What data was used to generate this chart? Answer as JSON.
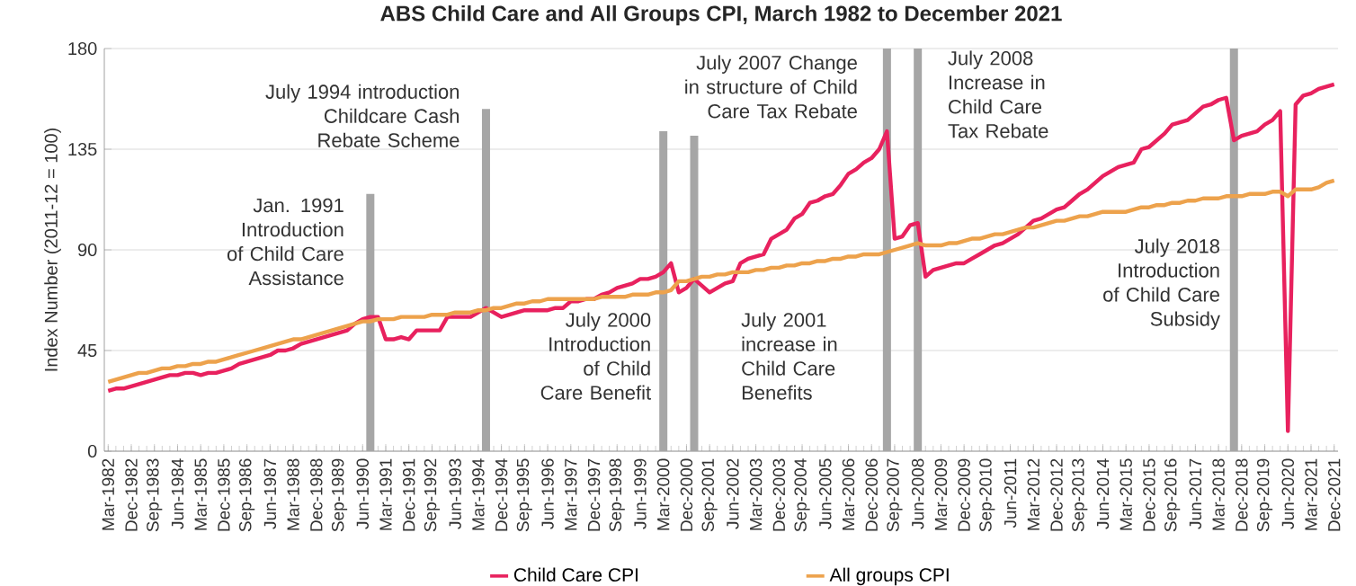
{
  "chart_data": {
    "type": "line",
    "title": "ABS Child Care and All Groups CPI, March 1982 to December 2021",
    "ylabel": "Index Number (2011-12 = 100)",
    "categories": [
      "Mar-1982",
      null,
      null,
      "Dec-1982",
      null,
      null,
      "Sep-1983",
      null,
      null,
      "Jun-1984",
      null,
      null,
      "Mar-1985",
      null,
      null,
      "Dec-1985",
      null,
      null,
      "Sep-1986",
      null,
      null,
      "Jun-1987",
      null,
      null,
      "Mar-1988",
      null,
      null,
      "Dec-1988",
      null,
      null,
      "Sep-1989",
      null,
      null,
      "Jun-1990",
      null,
      null,
      "Mar-1991",
      null,
      null,
      "Dec-1991",
      null,
      null,
      "Sep-1992",
      null,
      null,
      "Jun-1993",
      null,
      null,
      "Mar-1994",
      null,
      null,
      "Dec-1994",
      null,
      null,
      "Sep-1995",
      null,
      null,
      "Jun-1996",
      null,
      null,
      "Mar-1997",
      null,
      null,
      "Dec-1997",
      null,
      null,
      "Sep-1998",
      null,
      null,
      "Jun-1999",
      null,
      null,
      "Mar-2000",
      null,
      null,
      "Dec-2000",
      null,
      null,
      "Sep-2001",
      null,
      null,
      "Jun-2002",
      null,
      null,
      "Mar-2003",
      null,
      null,
      "Dec-2003",
      null,
      null,
      "Sep-2004",
      null,
      null,
      "Jun-2005",
      null,
      null,
      "Mar-2006",
      null,
      null,
      "Dec-2006",
      null,
      null,
      "Sep-2007",
      null,
      null,
      "Jun-2008",
      null,
      null,
      "Mar-2009",
      null,
      null,
      "Dec-2009",
      null,
      null,
      "Sep-2010",
      null,
      null,
      "Jun-2011",
      null,
      null,
      "Mar-2012",
      null,
      null,
      "Dec-2012",
      null,
      null,
      "Sep-2013",
      null,
      null,
      "Jun-2014",
      null,
      null,
      "Mar-2015",
      null,
      null,
      "Dec-2015",
      null,
      null,
      "Sep-2016",
      null,
      null,
      "Jun-2017",
      null,
      null,
      "Mar-2018",
      null,
      null,
      "Dec-2018",
      null,
      null,
      "Sep-2019",
      null,
      null,
      "Jun-2020",
      null,
      null,
      "Mar-2021",
      null,
      null,
      "Dec-2021"
    ],
    "series": [
      {
        "type": "bar",
        "color": "#a6a6a6",
        "values": [
          null,
          null,
          null,
          null,
          null,
          null,
          null,
          null,
          null,
          null,
          null,
          null,
          null,
          null,
          null,
          null,
          null,
          null,
          null,
          null,
          null,
          null,
          null,
          null,
          null,
          null,
          null,
          null,
          null,
          null,
          null,
          null,
          null,
          null,
          115,
          null,
          null,
          null,
          null,
          null,
          null,
          null,
          null,
          null,
          null,
          null,
          null,
          null,
          null,
          153,
          null,
          null,
          null,
          null,
          null,
          null,
          null,
          null,
          null,
          null,
          null,
          null,
          null,
          null,
          null,
          null,
          null,
          null,
          null,
          null,
          null,
          null,
          143,
          null,
          null,
          null,
          141,
          null,
          null,
          null,
          null,
          null,
          null,
          null,
          null,
          null,
          null,
          null,
          null,
          null,
          null,
          null,
          null,
          null,
          null,
          null,
          null,
          null,
          null,
          null,
          null,
          180,
          null,
          null,
          null,
          180,
          null,
          null,
          null,
          null,
          null,
          null,
          null,
          null,
          null,
          null,
          null,
          null,
          null,
          null,
          null,
          null,
          null,
          null,
          null,
          null,
          null,
          null,
          null,
          null,
          null,
          null,
          null,
          null,
          null,
          null,
          null,
          null,
          null,
          null,
          null,
          null,
          null,
          null,
          null,
          null,
          180,
          null,
          null,
          null,
          null,
          null,
          null,
          null,
          null,
          null,
          null,
          null,
          null,
          null
        ]
      },
      {
        "name": "Child Care CPI",
        "color": "#e8215e",
        "values": [
          27,
          28,
          28,
          29,
          30,
          31,
          32,
          33,
          34,
          34,
          35,
          35,
          34,
          35,
          35,
          36,
          37,
          39,
          40,
          41,
          42,
          43,
          45,
          45,
          46,
          48,
          49,
          50,
          51,
          52,
          53,
          54,
          57,
          59,
          60,
          60,
          50,
          50,
          51,
          50,
          54,
          54,
          54,
          54,
          60,
          60,
          60,
          60,
          62,
          64,
          62,
          60,
          61,
          62,
          63,
          63,
          63,
          63,
          64,
          64,
          67,
          67,
          68,
          68,
          70,
          71,
          73,
          74,
          75,
          77,
          77,
          78,
          80,
          84,
          71,
          73,
          77,
          74,
          71,
          73,
          75,
          76,
          84,
          86,
          87,
          88,
          95,
          97,
          99,
          104,
          106,
          111,
          112,
          114,
          115,
          119,
          124,
          126,
          129,
          131,
          135,
          143,
          95,
          96,
          101,
          102,
          78,
          81,
          82,
          83,
          84,
          84,
          86,
          88,
          90,
          92,
          93,
          95,
          97,
          100,
          103,
          104,
          106,
          108,
          109,
          112,
          115,
          117,
          120,
          123,
          125,
          127,
          128,
          129,
          135,
          136,
          139,
          142,
          146,
          147,
          148,
          151,
          154,
          155,
          157,
          158,
          139,
          141,
          142,
          143,
          146,
          148,
          152,
          9,
          155,
          159,
          160,
          162,
          163,
          164
        ]
      },
      {
        "name": "All groups CPI",
        "color": "#eda24c",
        "values": [
          31,
          32,
          33,
          34,
          35,
          35,
          36,
          37,
          37,
          38,
          38,
          39,
          39,
          40,
          40,
          41,
          42,
          43,
          44,
          45,
          46,
          47,
          48,
          49,
          50,
          50,
          51,
          52,
          53,
          54,
          55,
          56,
          57,
          58,
          58,
          59,
          59,
          59,
          60,
          60,
          60,
          60,
          61,
          61,
          61,
          62,
          62,
          62,
          63,
          63,
          64,
          64,
          65,
          66,
          66,
          67,
          67,
          68,
          68,
          68,
          68,
          68,
          68,
          68,
          69,
          69,
          69,
          69,
          70,
          70,
          70,
          71,
          71,
          72,
          76,
          76,
          77,
          78,
          78,
          79,
          79,
          80,
          80,
          80,
          81,
          81,
          82,
          82,
          83,
          83,
          84,
          84,
          85,
          85,
          86,
          86,
          87,
          87,
          88,
          88,
          88,
          89,
          90,
          91,
          92,
          93,
          92,
          92,
          92,
          93,
          93,
          94,
          95,
          95,
          96,
          97,
          97,
          98,
          99,
          100,
          100,
          101,
          102,
          103,
          103,
          104,
          105,
          105,
          106,
          107,
          107,
          107,
          107,
          108,
          109,
          109,
          110,
          110,
          111,
          111,
          112,
          112,
          113,
          113,
          113,
          114,
          114,
          114,
          115,
          115,
          115,
          116,
          116,
          114,
          117,
          117,
          117,
          118,
          120,
          121
        ]
      }
    ],
    "ylim": [
      0,
      180
    ],
    "yticks": [
      0,
      45,
      90,
      135,
      180
    ],
    "grid": "y",
    "legend": "bottom",
    "annotations": [
      "Jan. 1991 Introduction of Child Care Assistance",
      "July 1994 introduction Childcare Cash Rebate Scheme",
      "July 2000 Introduction of Child Care Benefit",
      "July 2001 increase in Child Care Benefits",
      "July 2007 Change in structure of Child Care Tax Rebate",
      "July 2008 Increase in Child Care Tax Rebate",
      "July 2018 Introduction of Child Care Subsidy"
    ]
  }
}
